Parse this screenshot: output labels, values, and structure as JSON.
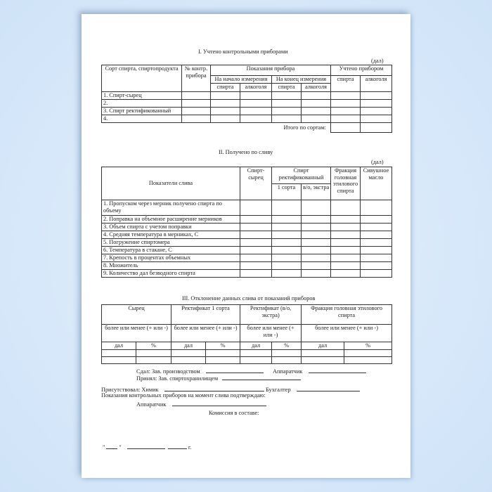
{
  "section1": {
    "title": "I. Учтено контрольными приборами",
    "unit": "(дал)",
    "headers": {
      "sort": "Сорт спирта, спиртопродукта",
      "number": "№ контр. прибора",
      "readings": "Показания прибора",
      "start": "На начало измерения",
      "end": "На конец измерения",
      "counted": "Учтено прибором",
      "spirit": "спирта",
      "alcohol": "алкоголя"
    },
    "rows": [
      "1. Спирт-сырец",
      "2.",
      "3. Спирт ректификованный",
      "4."
    ],
    "total": "Итого по сортам:"
  },
  "section2": {
    "title": "II. Получено по сливу",
    "unit": "(дал)",
    "headers": {
      "indicators": "Показатели слива",
      "raw": "Спирт-сырец",
      "rectified": "Спирт ректификованный",
      "grade1": "1 сорта",
      "extra": "в/о, экстра",
      "fraction": "Фракция головная этилового спирта",
      "fusel": "Сивушное масло"
    },
    "rows": [
      "1. Пропуском через мерник получено спирта по объему",
      "2. Поправка на объемное расширение мерников",
      "3. Объем спирта с учетом поправки",
      "4. Средняя температура в мерниках, С",
      "5. Погружение спиртомера",
      "6. Температура в стакане, С",
      "7. Крепость в процентах объемных",
      "8. Множитель",
      "9. Количество дал безводного спирта"
    ]
  },
  "section3": {
    "title": "III. Отклонение данных слива от показаний приборов",
    "groups": [
      "Сырец",
      "Ректификат 1 сорта",
      "Ректификат (в/о, экстра)",
      "Фракция головная этилового спирта"
    ],
    "more_less": "более или менее (+ или -)",
    "dal": "дал",
    "pct": "%"
  },
  "signatures": {
    "handed": "Сдал: Зав. производством",
    "operator": "Аппаратчик",
    "received": "Принял: Зав. спиртохранилищем",
    "present": "Присутствовал: Химик",
    "accountant": "Бухгалтер",
    "confirm": "Показания контрольных приборов на момент слива подтверждаю:",
    "operator2": "Аппаратчик",
    "commission": "Комиссия в составе:",
    "date_open": "\"",
    "date_close": "\"",
    "year": "г."
  }
}
